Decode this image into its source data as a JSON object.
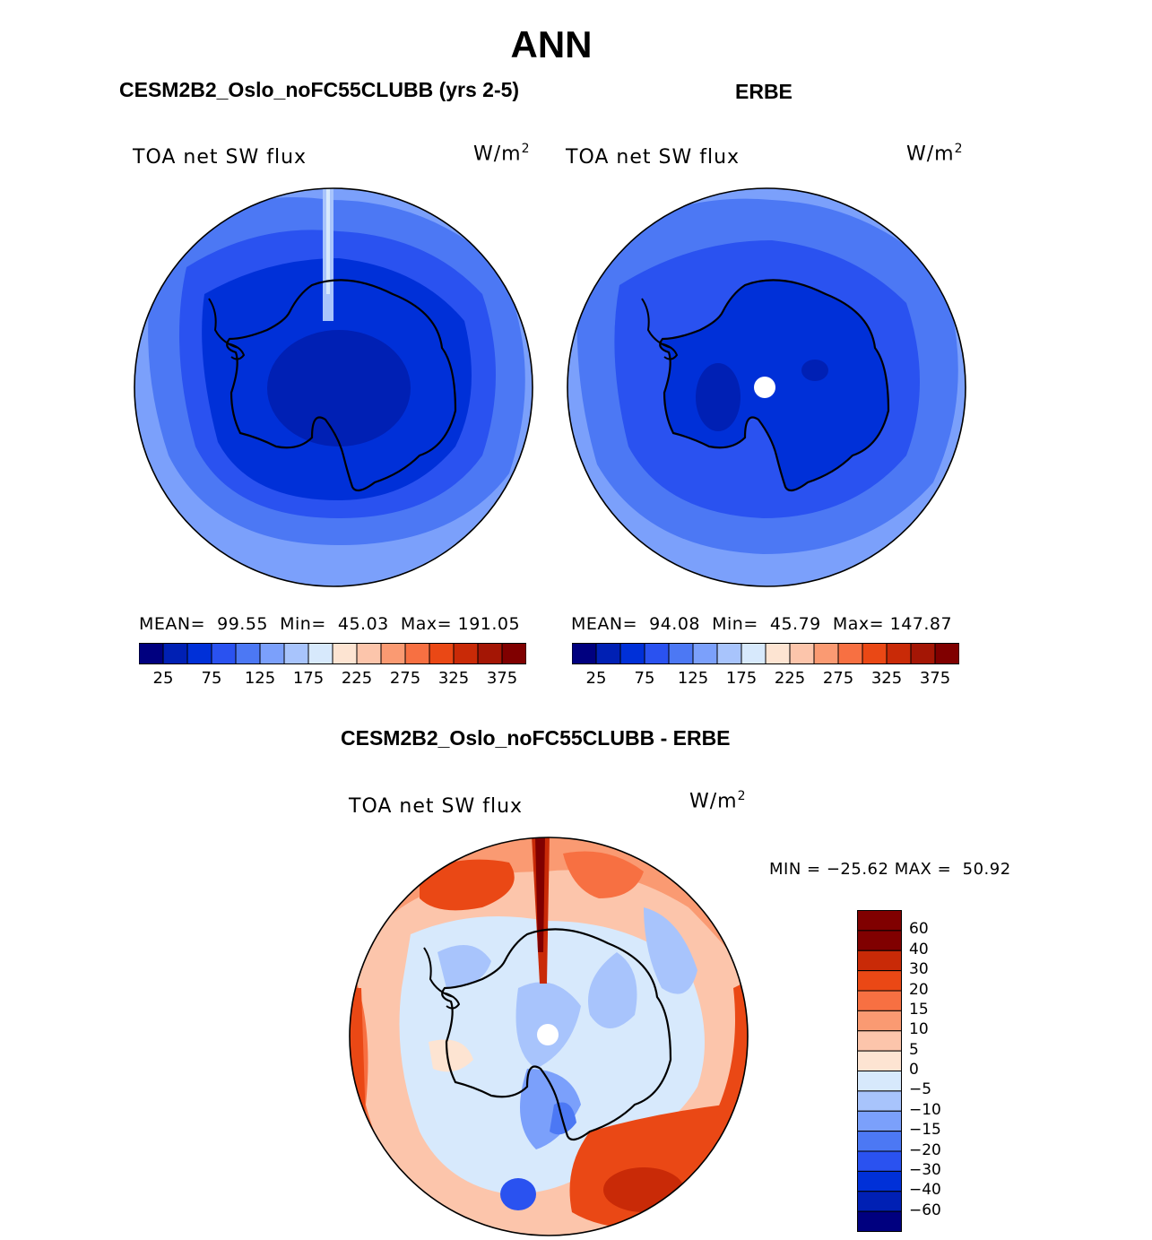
{
  "title": "ANN",
  "panels": [
    {
      "title": "CESM2B2_Oslo_noFC55CLUBB (yrs 2-5)",
      "variable": "TOA net SW flux",
      "units": "W/m",
      "units_exp": "2",
      "mean_label": "MEAN=",
      "mean": "99.55",
      "min_label": "Min=",
      "min": "45.03",
      "max_label": "Max=",
      "max": "191.05"
    },
    {
      "title": "ERBE",
      "variable": "TOA net SW flux",
      "units": "W/m",
      "units_exp": "2",
      "mean_label": "MEAN=",
      "mean": "94.08",
      "min_label": "Min=",
      "min": "45.79",
      "max_label": "Max=",
      "max": "147.87"
    }
  ],
  "diff": {
    "title": "CESM2B2_Oslo_noFC55CLUBB - ERBE",
    "variable": "TOA net SW flux",
    "units": "W/m",
    "units_exp": "2",
    "min_label": "MIN =",
    "min": "−25.62",
    "max_label": "MAX =",
    "max": "50.92"
  },
  "colors": {
    "abs_scale": [
      "#00007f",
      "#0020b4",
      "#0030d8",
      "#2a52f0",
      "#4c78f4",
      "#7ba0fb",
      "#a8c4fc",
      "#d7e9fc",
      "#fde4d2",
      "#fcc5ab",
      "#fa9a72",
      "#f77042",
      "#ea4815",
      "#c92a07",
      "#a41605",
      "#800000"
    ],
    "diff_scale": [
      "#00007f",
      "#0020b4",
      "#0030d8",
      "#2a52f0",
      "#4c78f4",
      "#7ba0fb",
      "#a8c4fc",
      "#d7e9fc",
      "#fde4d2",
      "#fcc5ab",
      "#fa9a72",
      "#f77042",
      "#ea4815",
      "#c92a07",
      "#800000"
    ]
  },
  "chart_data": [
    {
      "type": "heatmap",
      "title": "CESM2B2_Oslo_noFC55CLUBB (yrs 2-5)",
      "projection": "south polar stereographic",
      "variable": "TOA net SW flux",
      "units": "W/m2",
      "mean": 99.55,
      "min": 45.03,
      "max": 191.05,
      "contour_levels": [
        25,
        50,
        75,
        100,
        125,
        150,
        175,
        200,
        225,
        250,
        275,
        300,
        325,
        350,
        375
      ],
      "tick_labels": [
        "25",
        "75",
        "125",
        "175",
        "225",
        "275",
        "325",
        "375"
      ]
    },
    {
      "type": "heatmap",
      "title": "ERBE",
      "projection": "south polar stereographic",
      "variable": "TOA net SW flux",
      "units": "W/m2",
      "mean": 94.08,
      "min": 45.79,
      "max": 147.87,
      "contour_levels": [
        25,
        50,
        75,
        100,
        125,
        150,
        175,
        200,
        225,
        250,
        275,
        300,
        325,
        350,
        375
      ],
      "tick_labels": [
        "25",
        "75",
        "125",
        "175",
        "225",
        "275",
        "325",
        "375"
      ]
    },
    {
      "type": "heatmap",
      "title": "CESM2B2_Oslo_noFC55CLUBB - ERBE",
      "projection": "south polar stereographic",
      "variable": "TOA net SW flux",
      "units": "W/m2",
      "min": -25.62,
      "max": 50.92,
      "contour_levels": [
        -60,
        -40,
        -30,
        -20,
        -15,
        -10,
        -5,
        0,
        5,
        10,
        15,
        20,
        30,
        40,
        60
      ],
      "tick_labels": [
        "60",
        "40",
        "30",
        "20",
        "15",
        "10",
        "5",
        "0",
        "−5",
        "−10",
        "−15",
        "−20",
        "−30",
        "−40",
        "−60"
      ]
    }
  ]
}
